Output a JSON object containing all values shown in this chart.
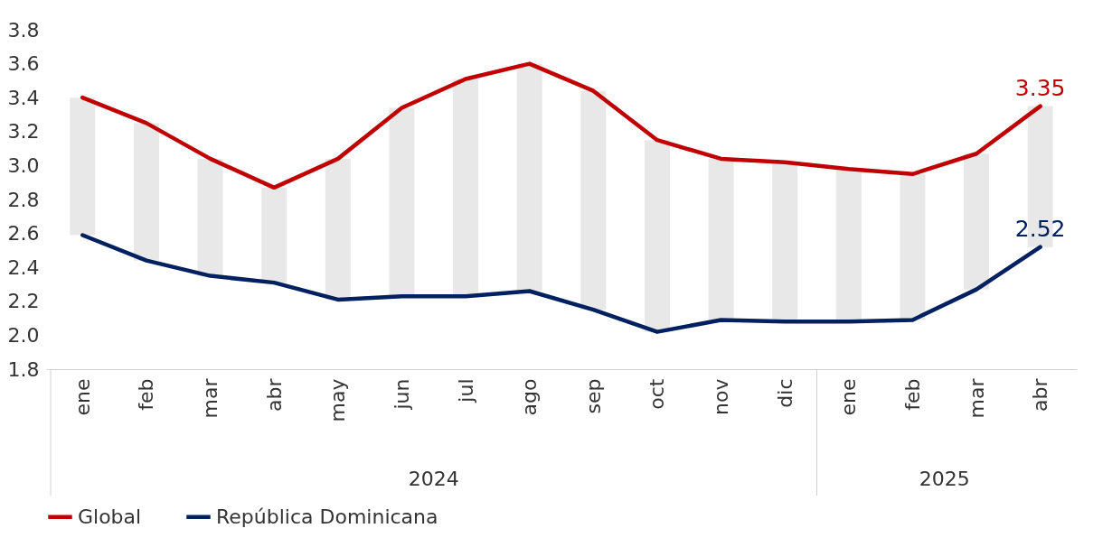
{
  "chart_data": {
    "type": "line",
    "categories": [
      "ene",
      "feb",
      "mar",
      "abr",
      "may",
      "jun",
      "jul",
      "ago",
      "sep",
      "oct",
      "nov",
      "dic",
      "ene",
      "feb",
      "mar",
      "abr"
    ],
    "series": [
      {
        "type": "bar",
        "color": "#e8e8e8",
        "base": [
          2.59,
          2.44,
          2.35,
          2.31,
          2.21,
          2.23,
          2.23,
          2.26,
          2.15,
          2.02,
          2.09,
          2.08,
          2.08,
          2.09,
          2.27,
          2.52
        ],
        "values": [
          0.81,
          0.81,
          0.69,
          0.56,
          0.83,
          1.11,
          1.28,
          1.34,
          1.29,
          1.13,
          0.95,
          0.94,
          0.9,
          0.86,
          0.8,
          0.83
        ]
      },
      {
        "name": "Global",
        "color": "#c00000",
        "values": [
          3.4,
          3.25,
          3.04,
          2.87,
          3.04,
          3.34,
          3.51,
          3.6,
          3.44,
          3.15,
          3.04,
          3.02,
          2.98,
          2.95,
          3.07,
          3.35
        ],
        "value_labels": [
          null,
          null,
          null,
          null,
          null,
          null,
          null,
          null,
          null,
          null,
          null,
          null,
          null,
          null,
          null,
          "3.35"
        ]
      },
      {
        "name": "República Dominicana",
        "color": "#002060",
        "values": [
          2.59,
          2.44,
          2.35,
          2.31,
          2.21,
          2.23,
          2.23,
          2.26,
          2.15,
          2.02,
          2.09,
          2.08,
          2.08,
          2.09,
          2.27,
          2.52
        ],
        "value_labels": [
          null,
          null,
          null,
          null,
          null,
          null,
          null,
          null,
          null,
          null,
          null,
          null,
          null,
          null,
          null,
          "2.52"
        ]
      }
    ],
    "ylim": [
      1.8,
      3.8
    ],
    "yticks": [
      1.8,
      {
        "value": 2,
        "label": "2.0"
      },
      2.2,
      2.4,
      2.6,
      2.8,
      {
        "value": 3,
        "label": "3.0"
      },
      3.2,
      3.4,
      3.6,
      3.8
    ],
    "annotations": [
      "2024",
      "2025"
    ],
    "grid": false,
    "legend": "bottom",
    "marker": "none",
    "line_style": "solid"
  }
}
